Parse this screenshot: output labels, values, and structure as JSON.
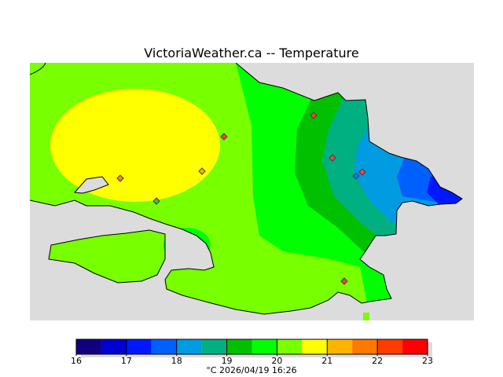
{
  "title": "VictoriaWeather.ca -- Temperature",
  "colorbar": {
    "unit": "°C",
    "timestamp": "2026/04/19 16:26",
    "ticks": [
      "16",
      "17",
      "18",
      "19",
      "20",
      "21",
      "22",
      "23"
    ],
    "colors": [
      "#100080",
      "#0000d0",
      "#0018ff",
      "#0060ff",
      "#009be0",
      "#00b080",
      "#00c000",
      "#00ff00",
      "#78ff00",
      "#ffff00",
      "#ffb400",
      "#ff7800",
      "#ff3c00",
      "#ff0000"
    ]
  },
  "stamp": "°C  2026/04/19 16:26",
  "colors": {
    "water": "#dcdcdc"
  }
}
